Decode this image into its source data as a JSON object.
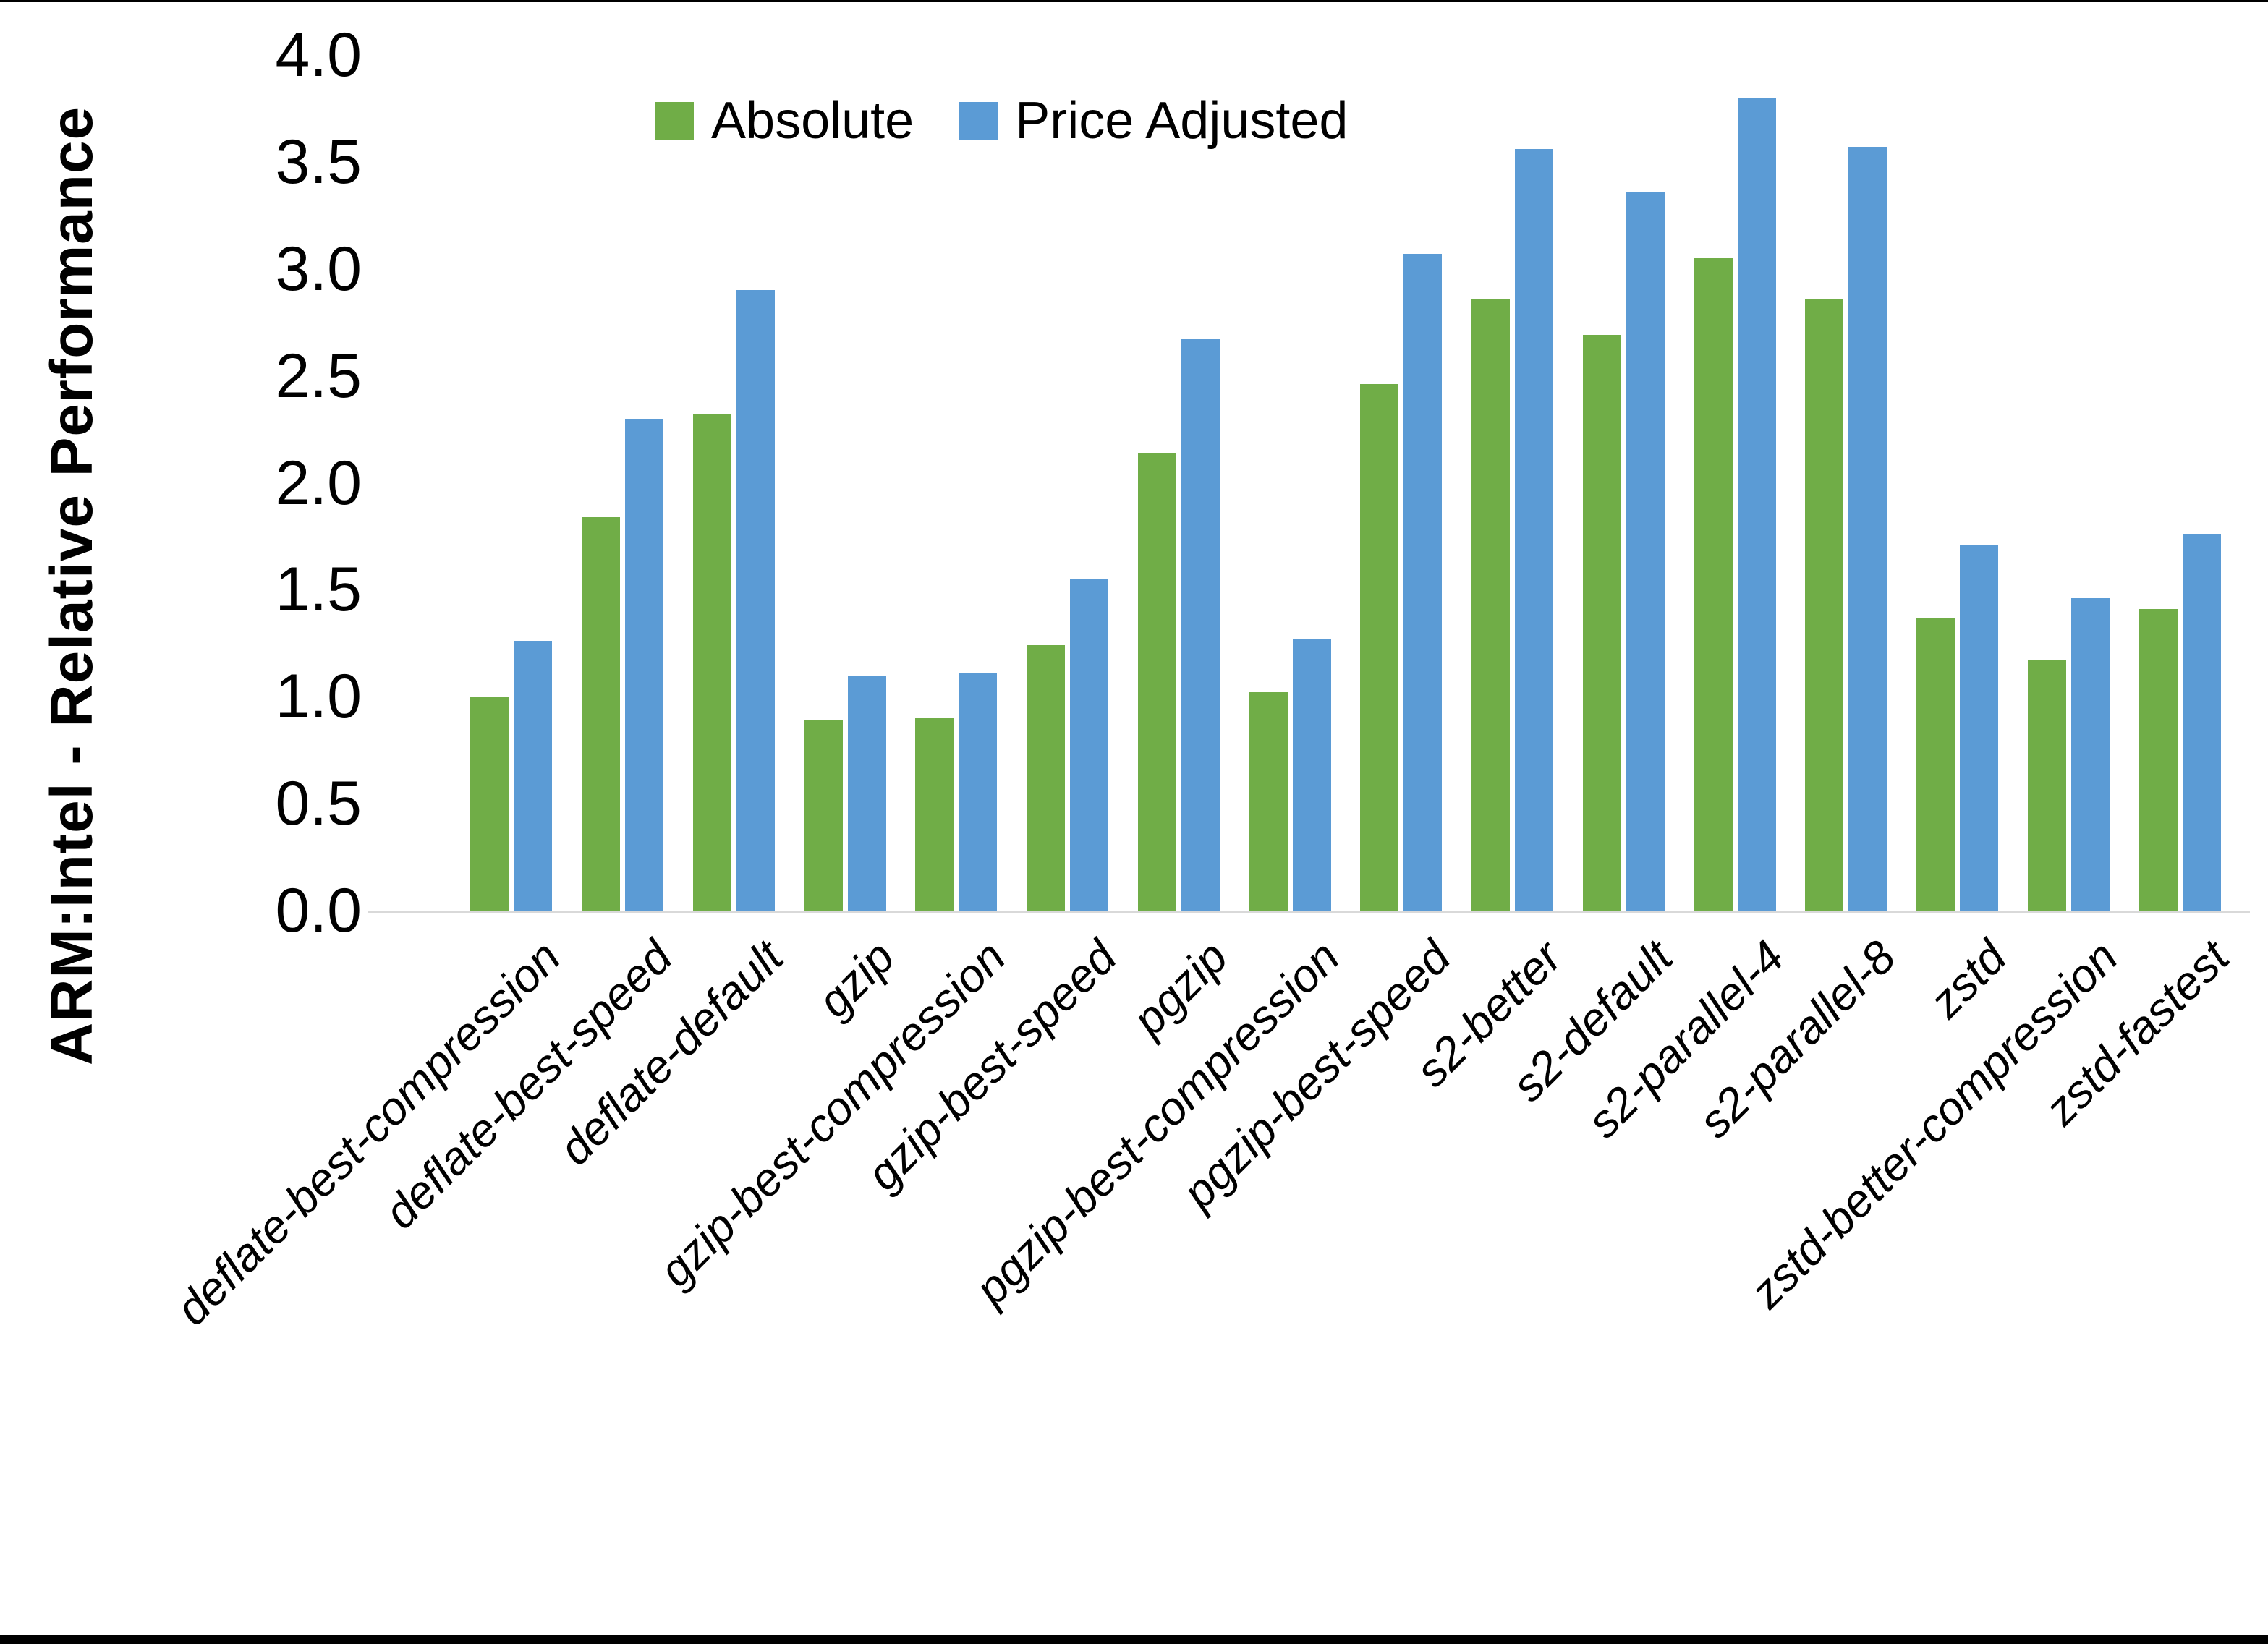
{
  "chart_data": {
    "type": "bar",
    "title": "",
    "xlabel": "",
    "ylabel": "ARM:Intel - Relative Performance",
    "ylim": [
      0.0,
      4.0
    ],
    "ytick_step": 0.5,
    "yticks": [
      "4.0",
      "3.5",
      "3.0",
      "2.5",
      "2.0",
      "1.5",
      "1.0",
      "0.5",
      "0.0"
    ],
    "grid": false,
    "legend_position": "top-center-inside",
    "categories": [
      "deflate-best-compression",
      "deflate-best-speed",
      "deflate-default",
      "gzip",
      "gzip-best-compression",
      "gzip-best-speed",
      "pgzip",
      "pgzip-best-compression",
      "pgzip-best-speed",
      "s2-better",
      "s2-default",
      "s2-parallel-4",
      "s2-parallel-8",
      "zstd",
      "zstd-better-compression",
      "zstd-fastest"
    ],
    "series": [
      {
        "name": "Absolute",
        "color": "#70AD47",
        "values": [
          1.0,
          1.84,
          2.32,
          0.89,
          0.9,
          1.24,
          2.14,
          1.02,
          2.46,
          2.86,
          2.69,
          3.05,
          2.86,
          1.37,
          1.17,
          1.41
        ]
      },
      {
        "name": "Price Adjusted",
        "color": "#5B9BD5",
        "values": [
          1.26,
          2.3,
          2.9,
          1.1,
          1.11,
          1.55,
          2.67,
          1.27,
          3.07,
          3.56,
          3.36,
          3.8,
          3.57,
          1.71,
          1.46,
          1.76
        ]
      }
    ],
    "axis_line_color": "#d9d9d9",
    "text_color": "#000000"
  },
  "frame": {
    "top_border_color": "#000000",
    "bottom_border_color": "#000000",
    "background": "#ffffff"
  }
}
